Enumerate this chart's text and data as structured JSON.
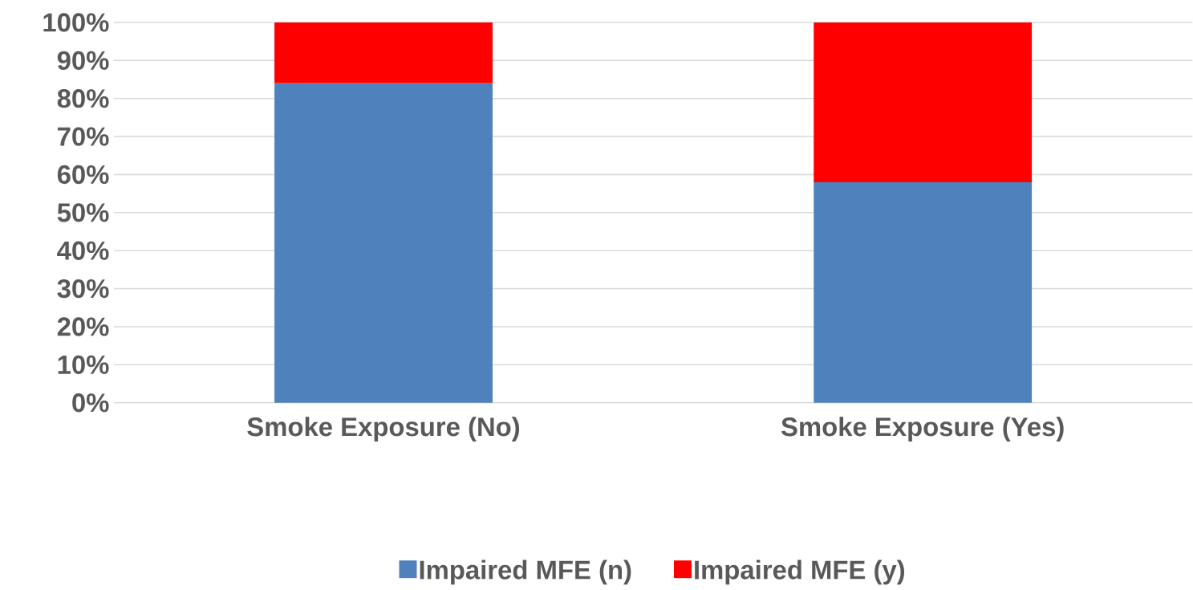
{
  "chart_data": {
    "type": "bar",
    "stacked": true,
    "categories": [
      "Smoke Exposure (No)",
      "Smoke Exposure (Yes)"
    ],
    "series": [
      {
        "name": "Impaired MFE (n)",
        "color": "#4f81bd",
        "values": [
          84,
          58
        ]
      },
      {
        "name": "Impaired MFE (y)",
        "color": "#ff0000",
        "values": [
          16,
          42
        ]
      }
    ],
    "ylim": [
      0,
      100
    ],
    "yticks": [
      {
        "value": 0,
        "label": "0%"
      },
      {
        "value": 10,
        "label": "10%"
      },
      {
        "value": 20,
        "label": "20%"
      },
      {
        "value": 30,
        "label": "30%"
      },
      {
        "value": 40,
        "label": "40%"
      },
      {
        "value": 50,
        "label": "50%"
      },
      {
        "value": 60,
        "label": "60%"
      },
      {
        "value": 70,
        "label": "70%"
      },
      {
        "value": 80,
        "label": "80%"
      },
      {
        "value": 90,
        "label": "90%"
      },
      {
        "value": 100,
        "label": "100%"
      }
    ],
    "grid": "y",
    "legend": "bottom"
  }
}
